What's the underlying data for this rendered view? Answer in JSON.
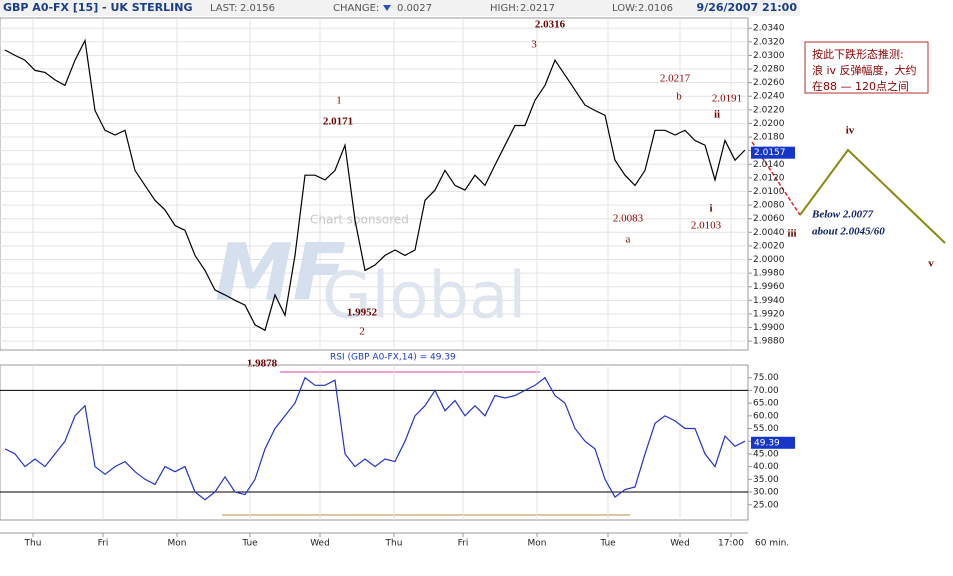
{
  "header": {
    "title": "GBP A0-FX [15] - UK STERLING",
    "last_label": "LAST:",
    "last": 2.0156,
    "change_label": "CHANGE:",
    "change": 0.0027,
    "high_label": "HIGH:",
    "high": 2.0217,
    "low_label": "LOW:",
    "low": 2.0106,
    "datetime": "9/26/2007 21:00",
    "interval": "60 min."
  },
  "chart_data": [
    {
      "type": "line",
      "color": "#000000",
      "last_box": 2.0157,
      "x": [
        0,
        1,
        2,
        3,
        4,
        5,
        6,
        7,
        8,
        9,
        10,
        11,
        12,
        13,
        14,
        15,
        16,
        17,
        18,
        19,
        20,
        21,
        22,
        23,
        24,
        25,
        26,
        27,
        28,
        29,
        30,
        31,
        32,
        33,
        34,
        35,
        36,
        37,
        38,
        39,
        40,
        41,
        42,
        43,
        44,
        45,
        46,
        47,
        48,
        49,
        50,
        51,
        52,
        53,
        54,
        55,
        56,
        57,
        58,
        59,
        60,
        61,
        62,
        63,
        64,
        65,
        66,
        67,
        68,
        69,
        70,
        71,
        72,
        73,
        74
      ],
      "values": [
        2.0308,
        2.03,
        2.0293,
        2.0278,
        2.0275,
        2.0264,
        2.0256,
        2.0293,
        2.0322,
        2.0219,
        2.019,
        2.0183,
        2.019,
        2.0131,
        2.0109,
        2.0087,
        2.0073,
        2.005,
        2.0043,
        2.0006,
        1.9984,
        1.9955,
        1.9948,
        1.994,
        1.9933,
        1.9904,
        1.9896,
        1.9948,
        1.9918,
        2.0006,
        2.0124,
        2.0124,
        2.0117,
        2.0131,
        2.0168,
        2.0058,
        1.9984,
        1.9992,
        2.0006,
        2.0014,
        2.0006,
        2.0014,
        2.0087,
        2.0102,
        2.0131,
        2.0109,
        2.0102,
        2.0124,
        2.0109,
        2.0139,
        2.0168,
        2.0197,
        2.0197,
        2.0234,
        2.0256,
        2.0293,
        2.0271,
        2.0249,
        2.0227,
        2.0219,
        2.0212,
        2.0146,
        2.0124,
        2.0109,
        2.0131,
        2.019,
        2.019,
        2.0183,
        2.019,
        2.0175,
        2.0168,
        2.0117,
        2.0175,
        2.0146,
        2.0161
      ],
      "xlim": [
        -0.5,
        74.3
      ],
      "ylim": [
        1.9867,
        2.0355
      ],
      "yticks": [
        {
          "value": 2.034,
          "label": "2.0340"
        },
        {
          "value": 2.032,
          "label": "2.0320"
        },
        {
          "value": 2.03,
          "label": "2.0300"
        },
        {
          "value": 2.028,
          "label": "2.0280"
        },
        {
          "value": 2.026,
          "label": "2.0260"
        },
        {
          "value": 2.024,
          "label": "2.0240"
        },
        {
          "value": 2.022,
          "label": "2.0220"
        },
        {
          "value": 2.02,
          "label": "2.0200"
        },
        {
          "value": 2.018,
          "label": "2.0180"
        },
        {
          "value": 2.016,
          "label": "2.0160"
        },
        {
          "value": 2.014,
          "label": "2.0140"
        },
        {
          "value": 2.012,
          "label": "2.0120"
        },
        {
          "value": 2.01,
          "label": "2.0100"
        },
        {
          "value": 2.008,
          "label": "2.0080"
        },
        {
          "value": 2.006,
          "label": "2.0060"
        },
        {
          "value": 2.004,
          "label": "2.0040"
        },
        {
          "value": 2.002,
          "label": "2.0020"
        },
        {
          "value": 2,
          "label": "2.0000"
        },
        {
          "value": 1.998,
          "label": "1.9980"
        },
        {
          "value": 1.996,
          "label": "1.9960"
        },
        {
          "value": 1.994,
          "label": "1.9940"
        },
        {
          "value": 1.992,
          "label": "1.9920"
        },
        {
          "value": 1.99,
          "label": "1.9900"
        },
        {
          "value": 1.988,
          "label": "1.9880"
        }
      ],
      "xticks": [
        {
          "value": 2.8,
          "label": "Thu"
        },
        {
          "value": 9.8,
          "label": "Fri"
        },
        {
          "value": 17.2,
          "label": "Mon"
        },
        {
          "value": 24.5,
          "label": "Tue"
        },
        {
          "value": 31.5,
          "label": "Wed"
        },
        {
          "value": 38.9,
          "label": "Thu"
        },
        {
          "value": 45.8,
          "label": "Fri"
        },
        {
          "value": 53.2,
          "label": "Mon"
        },
        {
          "value": 60.3,
          "label": "Tue"
        },
        {
          "value": 67.5,
          "label": "Wed"
        },
        {
          "value": 72.6,
          "label": "17:00"
        }
      ],
      "grid": true,
      "watermark": [
        "Chart sponsored",
        "MF",
        "Global"
      ],
      "annotations": [
        "1",
        "2.0171",
        "2",
        "1.9952",
        "1.9878",
        "2.0316",
        "3",
        "2.0217",
        "b",
        "2.0191",
        "ii",
        "2.0083",
        "a",
        "i",
        "2.0103",
        "iii",
        "iv",
        "v",
        "Below 2.0077",
        "about  2.0045/60"
      ],
      "note": [
        "按此下跌形态推测:",
        "浪 iv 反弹幅度，大约",
        "在88 — 120点之间"
      ]
    },
    {
      "type": "line",
      "title": "RSI (GBP A0-FX,14) = 49.39",
      "color": "#2233cc",
      "last_box": 49.39,
      "x": [
        0,
        1,
        2,
        3,
        4,
        5,
        6,
        7,
        8,
        9,
        10,
        11,
        12,
        13,
        14,
        15,
        16,
        17,
        18,
        19,
        20,
        21,
        22,
        23,
        24,
        25,
        26,
        27,
        28,
        29,
        30,
        31,
        32,
        33,
        34,
        35,
        36,
        37,
        38,
        39,
        40,
        41,
        42,
        43,
        44,
        45,
        46,
        47,
        48,
        49,
        50,
        51,
        52,
        53,
        54,
        55,
        56,
        57,
        58,
        59,
        60,
        61,
        62,
        63,
        64,
        65,
        66,
        67,
        68,
        69,
        70,
        71,
        72,
        73,
        74
      ],
      "values": [
        47,
        45,
        40,
        43,
        40,
        45,
        50,
        60,
        64,
        40,
        37,
        40,
        42,
        38,
        35,
        33,
        40,
        38,
        40,
        30,
        27,
        30,
        36,
        30,
        29,
        35,
        47,
        55,
        60,
        65,
        75,
        72,
        72,
        74,
        45,
        40,
        43,
        40,
        43,
        42,
        50,
        60,
        64,
        70,
        62,
        66,
        60,
        64,
        60,
        68,
        67,
        68,
        70,
        72,
        75,
        68,
        65,
        55,
        50,
        47,
        35,
        28,
        31,
        32,
        45,
        57,
        60,
        58,
        55,
        55,
        45,
        40,
        52,
        48,
        50
      ],
      "xlim": [
        -0.5,
        74.3
      ],
      "ylim": [
        19,
        80
      ],
      "yticks": [
        {
          "value": 75,
          "label": "75.00"
        },
        {
          "value": 70,
          "label": "70.00"
        },
        {
          "value": 65,
          "label": "65.00"
        },
        {
          "value": 60,
          "label": "60.00"
        },
        {
          "value": 55,
          "label": "55.00"
        },
        {
          "value": 50,
          "label": "50.00"
        },
        {
          "value": 45,
          "label": "45.00"
        },
        {
          "value": 40,
          "label": "40.00"
        },
        {
          "value": 35,
          "label": "35.00"
        },
        {
          "value": 30,
          "label": "30.00"
        },
        {
          "value": 25,
          "label": "25.00"
        }
      ],
      "levels": [
        70,
        30
      ]
    }
  ]
}
